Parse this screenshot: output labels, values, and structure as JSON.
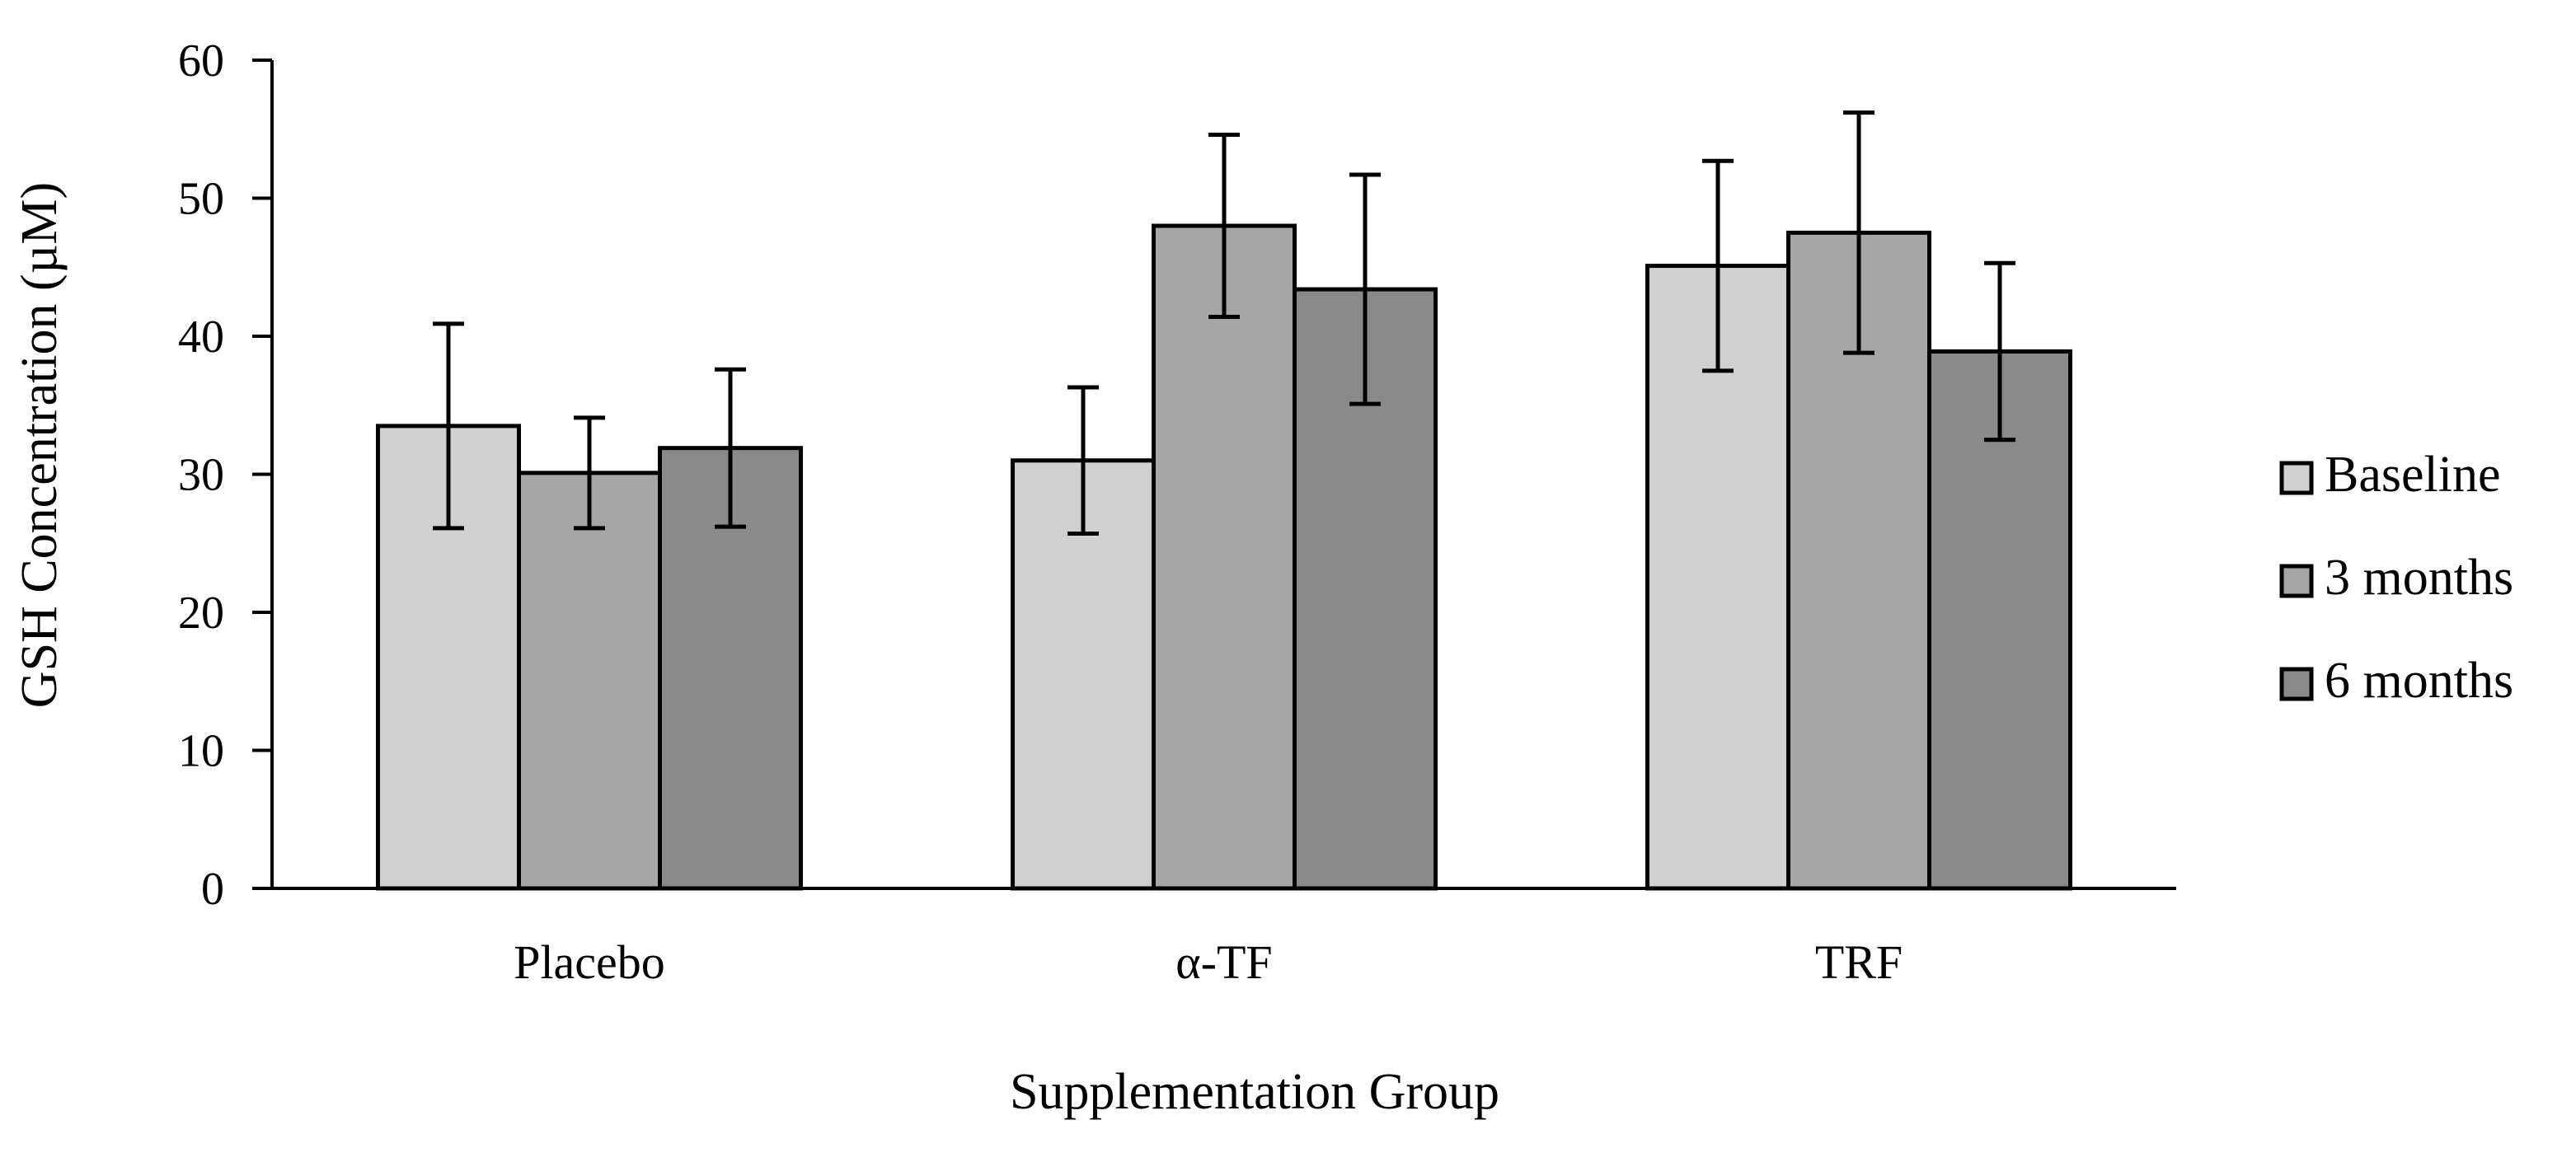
{
  "chart_data": {
    "type": "bar",
    "title": "",
    "xlabel": "Supplementation Group",
    "ylabel": "GSH Concentration (µM)",
    "ylim": [
      0,
      60
    ],
    "yticks": [
      0,
      10,
      20,
      30,
      40,
      50,
      60
    ],
    "grid": false,
    "legend_position": "right",
    "categories": [
      "Placebo",
      "α-TF",
      "TRF"
    ],
    "series": [
      {
        "name": "Baseline",
        "color": "#d0d0d0",
        "values": [
          33.5,
          31.0,
          45.1
        ],
        "errors": [
          7.4,
          5.3,
          7.6
        ]
      },
      {
        "name": "3 months",
        "color": "#a6a6a6",
        "values": [
          30.1,
          48.0,
          47.5
        ],
        "errors": [
          4.0,
          6.6,
          8.7
        ]
      },
      {
        "name": "6 months",
        "color": "#8a8a8a",
        "values": [
          31.9,
          43.4,
          38.9
        ],
        "errors": [
          5.7,
          8.3,
          6.4
        ]
      }
    ]
  }
}
